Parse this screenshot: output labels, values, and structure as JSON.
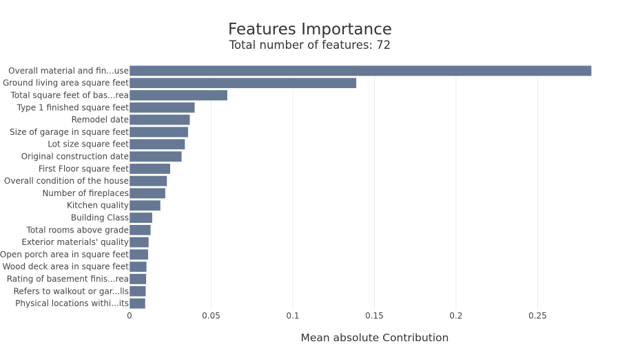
{
  "chart_data": {
    "type": "bar",
    "orientation": "horizontal",
    "title": "Features Importance",
    "subtitle": "Total number of features: 72",
    "xlabel": "Mean absolute Contribution",
    "ylabel": "",
    "xlim": [
      0,
      0.292
    ],
    "xticks": [
      0,
      0.05,
      0.1,
      0.15,
      0.2,
      0.25
    ],
    "xtick_labels": [
      "0",
      "0.05",
      "0.1",
      "0.15",
      "0.2",
      "0.25"
    ],
    "grid": "vertical",
    "bar_color": "#667894",
    "categories": [
      "Overall material and fin...use",
      "Ground living area square feet",
      "Total square feet of bas...rea",
      "Type 1 finished square feet",
      "Remodel date",
      "Size of garage in square feet",
      "Lot size square feet",
      "Original construction date",
      "First Floor square feet",
      "Overall condition of the house",
      "Number of fireplaces",
      "Kitchen quality",
      "Building Class",
      "Total rooms above grade",
      "Exterior materials' quality",
      "Open porch area in square feet",
      "Wood deck area in square feet",
      "Rating of basement finis...rea",
      "Refers to walkout or gar...lls",
      "Physical locations withi...its"
    ],
    "values": [
      0.283,
      0.139,
      0.06,
      0.04,
      0.037,
      0.036,
      0.034,
      0.032,
      0.025,
      0.023,
      0.022,
      0.019,
      0.014,
      0.013,
      0.0118,
      0.0115,
      0.0105,
      0.0103,
      0.01,
      0.0097
    ]
  }
}
